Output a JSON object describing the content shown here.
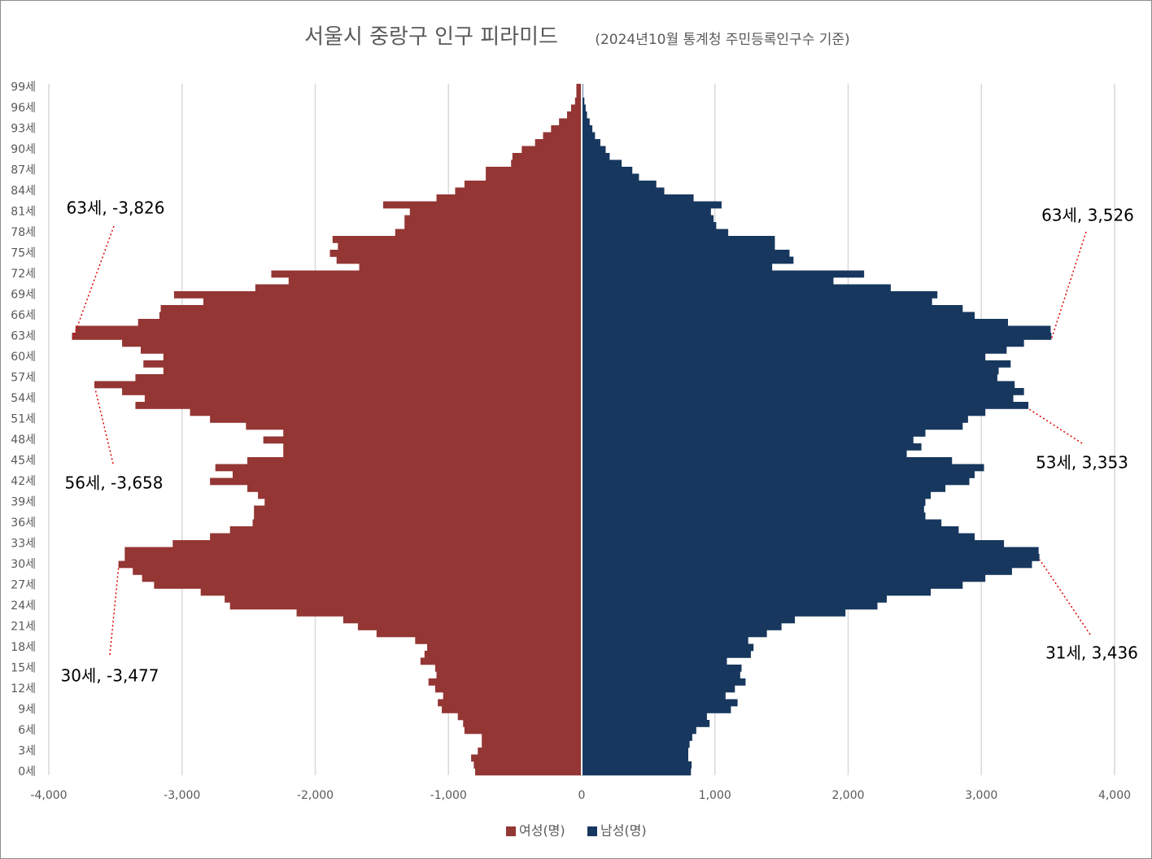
{
  "chart_data": {
    "type": "pyramid",
    "title": "서울시 중랑구 인구 피라미드",
    "subtitle": "(2024년10월 통계청 주민등록인구수 기준)",
    "categories": [
      "0세",
      null,
      null,
      "3세",
      null,
      null,
      "6세",
      null,
      null,
      "9세",
      null,
      null,
      "12세",
      null,
      null,
      "15세",
      null,
      null,
      "18세",
      null,
      null,
      "21세",
      null,
      null,
      "24세",
      null,
      null,
      "27세",
      null,
      null,
      "30세",
      null,
      null,
      "33세",
      null,
      null,
      "36세",
      null,
      null,
      "39세",
      null,
      null,
      "42세",
      null,
      null,
      "45세",
      null,
      null,
      "48세",
      null,
      null,
      "51세",
      null,
      null,
      "54세",
      null,
      null,
      "57세",
      null,
      null,
      "60세",
      null,
      null,
      "63세",
      null,
      null,
      "66세",
      null,
      null,
      "69세",
      null,
      null,
      "72세",
      null,
      null,
      "75세",
      null,
      null,
      "78세",
      null,
      null,
      "81세",
      null,
      null,
      "84세",
      null,
      null,
      "87세",
      null,
      null,
      "90세",
      null,
      null,
      "93세",
      null,
      null,
      "96세",
      null,
      null,
      "99세"
    ],
    "series": [
      {
        "name": "여성(명)",
        "color": "#943634",
        "values": [
          -800,
          -810,
          -830,
          -780,
          -750,
          -750,
          -880,
          -890,
          -930,
          -1050,
          -1080,
          -1040,
          -1100,
          -1150,
          -1090,
          -1100,
          -1210,
          -1180,
          -1160,
          -1250,
          -1540,
          -1680,
          -1790,
          -2140,
          -2640,
          -2680,
          -2860,
          -3210,
          -3300,
          -3370,
          -3477,
          -3430,
          -3430,
          -3070,
          -2790,
          -2640,
          -2470,
          -2460,
          -2460,
          -2380,
          -2430,
          -2510,
          -2790,
          -2620,
          -2750,
          -2510,
          -2240,
          -2240,
          -2390,
          -2240,
          -2520,
          -2790,
          -2940,
          -3350,
          -3280,
          -3450,
          -3658,
          -3350,
          -3140,
          -3290,
          -3140,
          -3310,
          -3450,
          -3826,
          -3800,
          -3330,
          -3170,
          -3160,
          -2840,
          -3060,
          -2450,
          -2200,
          -2330,
          -1670,
          -1840,
          -1890,
          -1830,
          -1870,
          -1400,
          -1330,
          -1330,
          -1290,
          -1490,
          -1090,
          -950,
          -880,
          -720,
          -720,
          -530,
          -520,
          -450,
          -350,
          -290,
          -230,
          -170,
          -110,
          -80,
          -50,
          -40,
          -40
        ]
      },
      {
        "name": "남성(명)",
        "color": "#17375e",
        "values": [
          820,
          825,
          800,
          800,
          810,
          830,
          860,
          960,
          940,
          1120,
          1170,
          1080,
          1150,
          1230,
          1190,
          1200,
          1090,
          1270,
          1290,
          1250,
          1390,
          1500,
          1600,
          1980,
          2220,
          2290,
          2620,
          2860,
          3030,
          3230,
          3380,
          3436,
          3430,
          3170,
          2950,
          2830,
          2700,
          2580,
          2570,
          2580,
          2620,
          2730,
          2910,
          2950,
          3020,
          2780,
          2440,
          2550,
          2490,
          2580,
          2860,
          2900,
          3030,
          3353,
          3240,
          3320,
          3250,
          3120,
          3130,
          3220,
          3030,
          3190,
          3320,
          3526,
          3520,
          3200,
          2950,
          2860,
          2630,
          2670,
          2320,
          1890,
          2120,
          1430,
          1590,
          1560,
          1450,
          1450,
          1100,
          1010,
          990,
          970,
          1050,
          840,
          620,
          560,
          430,
          380,
          300,
          210,
          180,
          140,
          100,
          80,
          60,
          40,
          30,
          20,
          10,
          10
        ]
      }
    ],
    "xlim": [
      -4000,
      4000
    ],
    "xticks": [
      {
        "value": -4000,
        "label": "-4,000"
      },
      {
        "value": -3000,
        "label": "-3,000"
      },
      {
        "value": -2000,
        "label": "-2,000"
      },
      {
        "value": -1000,
        "label": "-1,000"
      },
      0,
      {
        "value": 1000,
        "label": "1,000"
      },
      {
        "value": 2000,
        "label": "2,000"
      },
      {
        "value": 3000,
        "label": "3,000"
      },
      {
        "value": 4000,
        "label": "4,000"
      }
    ],
    "grid": true,
    "legend": "bottom",
    "annotations": [
      "63세, -3,826",
      "56세, -3,658",
      "30세, -3,477",
      "63세, 3,526",
      "53세, 3,353",
      "31세, 3,436"
    ]
  }
}
